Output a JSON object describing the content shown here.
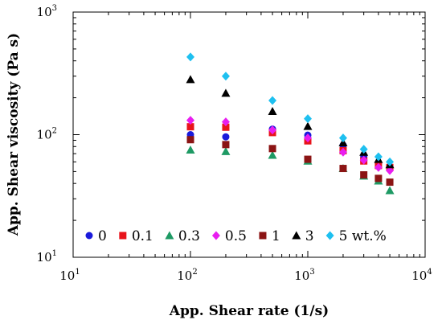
{
  "chart_data": {
    "type": "scatter",
    "xlabel": "App. Shear rate (1/s)",
    "ylabel": "App. Shear viscosity (Pa s)",
    "x_scale": "log",
    "y_scale": "log",
    "xlim": [
      10,
      10000
    ],
    "ylim": [
      10,
      1000
    ],
    "grid": false,
    "legend_position": "bottom-left, single row",
    "x_ticks": [
      {
        "base": "10",
        "exp": "1"
      },
      {
        "base": "10",
        "exp": "2"
      },
      {
        "base": "10",
        "exp": "3"
      },
      {
        "base": "10",
        "exp": "4"
      }
    ],
    "y_ticks": [
      {
        "base": "10",
        "exp": "1"
      },
      {
        "base": "10",
        "exp": "2"
      },
      {
        "base": "10",
        "exp": "3"
      }
    ],
    "series": [
      {
        "name": "0",
        "color": "#1a1adb",
        "marker": "circle",
        "x": [
          100,
          200,
          500,
          1000,
          2000,
          3000,
          4000,
          5000
        ],
        "y": [
          100,
          96,
          111,
          99,
          82,
          66,
          58,
          55
        ]
      },
      {
        "name": "0.1",
        "color": "#e8141b",
        "marker": "square",
        "x": [
          100,
          200,
          500,
          1000,
          2000,
          3000,
          4000,
          5000
        ],
        "y": [
          116,
          115,
          104,
          89,
          74,
          61,
          56,
          54
        ]
      },
      {
        "name": "0.3",
        "color": "#1e9a64",
        "marker": "triangle",
        "x": [
          100,
          200,
          500,
          1000,
          2000,
          3000,
          4000,
          5000
        ],
        "y": [
          75,
          73,
          68,
          61,
          53,
          46,
          42,
          35
        ]
      },
      {
        "name": "0.5",
        "color": "#e81ef0",
        "marker": "diamond",
        "x": [
          100,
          200,
          500,
          1000,
          2000,
          3000,
          4000,
          5000
        ],
        "y": [
          131,
          127,
          109,
          94,
          72,
          62,
          54,
          51
        ]
      },
      {
        "name": "1",
        "color": "#8b1414",
        "marker": "square",
        "x": [
          100,
          200,
          500,
          1000,
          2000,
          3000,
          4000,
          5000
        ],
        "y": [
          91,
          83,
          77,
          63,
          53,
          47,
          44,
          41
        ]
      },
      {
        "name": "3",
        "color": "#000000",
        "marker": "triangle",
        "x": [
          100,
          200,
          500,
          1000,
          2000,
          3000,
          4000,
          5000
        ],
        "y": [
          282,
          218,
          155,
          117,
          86,
          72,
          63,
          57
        ]
      },
      {
        "name": "5 wt.%",
        "color": "#1ec0f0",
        "marker": "diamond",
        "x": [
          100,
          200,
          500,
          1000,
          2000,
          3000,
          4000,
          5000
        ],
        "y": [
          430,
          300,
          190,
          135,
          94,
          76,
          66,
          60
        ]
      }
    ]
  }
}
